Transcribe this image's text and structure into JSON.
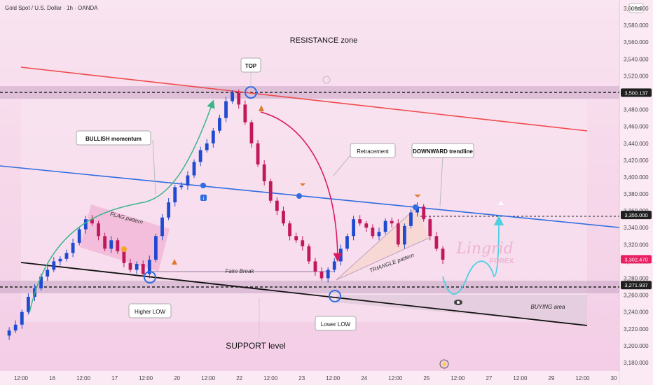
{
  "header": {
    "symbol_title": "Gold Spot / U.S. Dollar · 1h · OANDA",
    "currency": "USD"
  },
  "chart_data": {
    "type": "candlestick",
    "title": "Gold Spot / U.S. Dollar · 1h · OANDA",
    "y_unit": "USD",
    "ylim": [
      3170,
      3610
    ],
    "y_ticks": [
      3180,
      3200,
      3220,
      3240,
      3260,
      3280,
      3300,
      3320,
      3340,
      3360,
      3380,
      3400,
      3420,
      3440,
      3460,
      3480,
      3500,
      3520,
      3540,
      3560,
      3580,
      3600
    ],
    "x_ticks": [
      "12:00",
      "16",
      "12:00",
      "17",
      "12:00",
      "20",
      "12:00",
      "22",
      "12:00",
      "23",
      "12:00",
      "24",
      "12:00",
      "25",
      "12:00",
      "27",
      "12:00",
      "29",
      "12:00",
      "30"
    ],
    "price_badges": [
      {
        "value": "3,500.137",
        "color": "#1f1f1f"
      },
      {
        "value": "3,355.000",
        "color": "#1f1f1f"
      },
      {
        "value": "3,302.470",
        "color": "#e91e63"
      },
      {
        "value": "3,271.937",
        "color": "#1f1f1f"
      }
    ],
    "price_path": [
      3212,
      3218,
      3225,
      3240,
      3258,
      3268,
      3282,
      3290,
      3300,
      3303,
      3310,
      3322,
      3338,
      3350,
      3345,
      3330,
      3315,
      3325,
      3312,
      3298,
      3290,
      3297,
      3285,
      3302,
      3330,
      3352,
      3370,
      3388,
      3390,
      3402,
      3418,
      3432,
      3440,
      3455,
      3470,
      3490,
      3500,
      3486,
      3465,
      3440,
      3415,
      3395,
      3372,
      3360,
      3345,
      3330,
      3325,
      3318,
      3300,
      3288,
      3280,
      3290,
      3300,
      3315,
      3330,
      3350,
      3345,
      3340,
      3330,
      3335,
      3348,
      3345,
      3320,
      3342,
      3358,
      3365,
      3350,
      3330,
      3315,
      3302
    ],
    "candles_bull_color": "#1f4bd1",
    "candles_bear_color": "#c2185b",
    "projection_color": "#4dd0e1",
    "colors": {
      "resistance_line": "#ef4b4b",
      "trendline": "#2f6de0",
      "support_line": "#111111",
      "bullish_arrow": "#3bb58a",
      "retracement_arrow": "#d81b60",
      "zone_band": "#c9a6c4",
      "marker_circle": "#2f6de0"
    }
  },
  "annotations": {
    "resistance_zone": "RESISTANCE zone",
    "top": "TOP",
    "bullish_momentum": "BULLISH momentum",
    "flag_pattern": "FLAG pattern",
    "retracement": "Retracement",
    "downward_trendline": "DOWNWARD trendline",
    "fake_break": "Fake Break",
    "triangle_pattern": "TRIANGLE pattern",
    "higher_low": "Higher LOW",
    "lower_low": "Lower LOW",
    "support_level": "SUPPORT level",
    "buying_area": "BUYING area",
    "watermark_main": "Lingrid",
    "watermark_sub": "FOREX"
  }
}
